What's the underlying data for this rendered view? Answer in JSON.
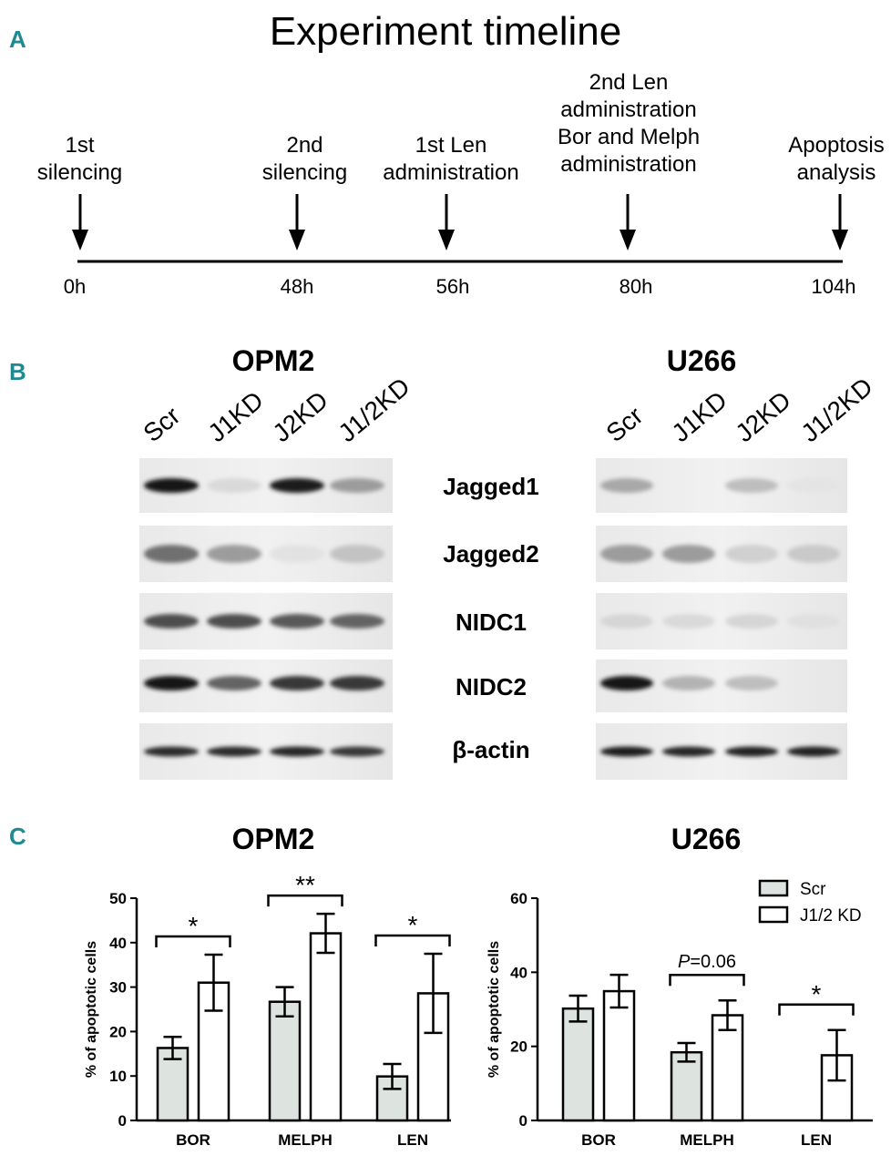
{
  "panels": {
    "a": "A",
    "b": "B",
    "c": "C"
  },
  "timeline": {
    "title": "Experiment timeline",
    "events": [
      {
        "label": "1st\nsilencing",
        "time": "0h"
      },
      {
        "label": "2nd\nsilencing",
        "time": "48h"
      },
      {
        "label": "1st Len\nadministration",
        "time": "56h"
      },
      {
        "label": "2nd Len\nadministration\nBor and Melph\nadministration",
        "time": "80h"
      },
      {
        "label": "Apoptosis\nanalysis",
        "time": "104h"
      }
    ]
  },
  "blots": {
    "cell_lines": [
      "OPM2",
      "U266"
    ],
    "lanes": [
      "Scr",
      "J1KD",
      "J2KD",
      "J1/2KD"
    ],
    "proteins": [
      "Jagged1",
      "Jagged2",
      "NIDC1",
      "NIDC2",
      "β-actin"
    ],
    "band_intensity": {
      "OPM2": [
        [
          0.95,
          0.08,
          0.92,
          0.35
        ],
        [
          0.55,
          0.35,
          0.04,
          0.18
        ],
        [
          0.7,
          0.7,
          0.65,
          0.6
        ],
        [
          0.95,
          0.6,
          0.8,
          0.8
        ],
        [
          0.85,
          0.85,
          0.88,
          0.8
        ]
      ],
      "U266": [
        [
          0.3,
          0.0,
          0.2,
          0.03
        ],
        [
          0.35,
          0.35,
          0.12,
          0.15
        ],
        [
          0.1,
          0.08,
          0.1,
          0.05
        ],
        [
          0.95,
          0.25,
          0.2,
          0.0
        ],
        [
          0.92,
          0.88,
          0.9,
          0.9
        ]
      ]
    }
  },
  "chart_data": [
    {
      "type": "bar",
      "title": "OPM2",
      "categories": [
        "BOR",
        "MELPH",
        "LEN"
      ],
      "ylabel": "% of apoptotic cells",
      "ylim": [
        0,
        50
      ],
      "yticks": [
        0,
        10,
        20,
        30,
        40,
        50
      ],
      "series": [
        {
          "name": "Scr",
          "values": [
            16.3,
            26.7,
            9.9
          ],
          "errors": [
            2.5,
            3.3,
            2.8
          ],
          "color": "#dde3df"
        },
        {
          "name": "J1/2 KD",
          "values": [
            31.0,
            42.1,
            28.6
          ],
          "errors": [
            6.3,
            4.4,
            8.9
          ],
          "color": "#ffffff"
        }
      ],
      "annotations": [
        {
          "category": "BOR",
          "text": "*"
        },
        {
          "category": "MELPH",
          "text": "**"
        },
        {
          "category": "LEN",
          "text": "*"
        }
      ]
    },
    {
      "type": "bar",
      "title": "U266",
      "categories": [
        "BOR",
        "MELPH",
        "LEN"
      ],
      "ylabel": "% of apoptotic cells",
      "ylim": [
        0,
        60
      ],
      "yticks": [
        0,
        20,
        40,
        60
      ],
      "legend": "top-right",
      "series": [
        {
          "name": "Scr",
          "values": [
            30.2,
            18.4,
            0
          ],
          "errors": [
            3.5,
            2.5,
            0
          ],
          "color": "#dde3df"
        },
        {
          "name": "J1/2 KD",
          "values": [
            34.9,
            28.4,
            17.6
          ],
          "errors": [
            4.4,
            4.0,
            6.8
          ],
          "color": "#ffffff"
        }
      ],
      "annotations": [
        {
          "category": "MELPH",
          "text_prefix": "P",
          "text": "=0.06"
        },
        {
          "category": "LEN",
          "text": "*"
        }
      ]
    }
  ]
}
